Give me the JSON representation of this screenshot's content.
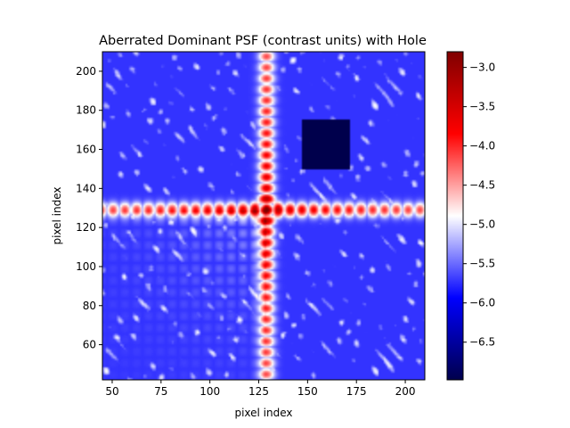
{
  "chart_data": {
    "type": "heatmap",
    "title": "Aberrated Dominant PSF (contrast units) with Hole",
    "xlabel": "pixel index",
    "ylabel": "pixel index",
    "xlim": [
      45,
      210
    ],
    "ylim": [
      42,
      210
    ],
    "x_ticks": [
      50,
      75,
      100,
      125,
      150,
      175,
      200
    ],
    "y_ticks": [
      60,
      80,
      100,
      120,
      140,
      160,
      180,
      200
    ],
    "colormap": "seismic",
    "colorbar": {
      "range": [
        -6.98,
        -2.8
      ],
      "ticks": [
        -3.0,
        -3.5,
        -4.0,
        -4.5,
        -5.0,
        -5.5,
        -6.0,
        -6.5
      ]
    },
    "psf_center": [
      129,
      129
    ],
    "hole": {
      "x_range": [
        147,
        172
      ],
      "y_range": [
        150,
        175
      ]
    },
    "colors": {
      "low": "#00004c",
      "mid": "#ffffff",
      "high": "#800000"
    }
  }
}
